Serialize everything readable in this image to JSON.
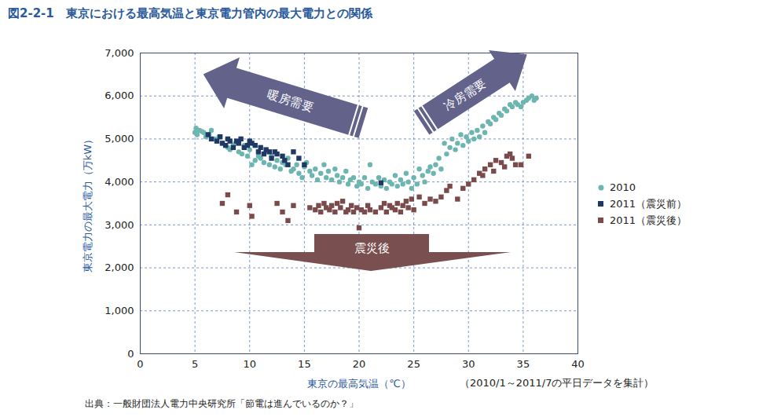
{
  "chart_data": {
    "type": "scatter",
    "title": "図2-2-1　東京における最高気温と東京電力管内の最大電力との関係",
    "x_label": "東京の最高気温（℃）",
    "y_label": "東京電力の最大電力（万kW）",
    "note": "（2010/1～2011/7の平日データを集計）",
    "source": "出典：一般財団法人電力中央研究所「節電は進んでいるのか？」",
    "annotations": [
      "暖房需要",
      "冷房需要",
      "震災後"
    ],
    "xlim": [
      0,
      40
    ],
    "xticks": [
      0,
      5,
      10,
      15,
      20,
      25,
      30,
      35,
      40
    ],
    "ylim": [
      0,
      7000
    ],
    "yticks": [
      0,
      {
        "value": 1000,
        "label": "1,000"
      },
      {
        "value": 2000,
        "label": "2,000"
      },
      {
        "value": 3000,
        "label": "3,000"
      },
      {
        "value": 4000,
        "label": "4,000"
      },
      {
        "value": 5000,
        "label": "5,000"
      },
      {
        "value": 6000,
        "label": "6,000"
      },
      {
        "value": 7000,
        "label": "7,000"
      }
    ],
    "grid": true,
    "legend": "right",
    "series": [
      {
        "name": "2010",
        "color": "#6db5b1",
        "marker": "circle",
        "x": [
          5.0,
          5.1,
          5.2,
          5.4,
          5.6,
          5.8,
          6.0,
          6.3,
          6.5,
          6.8,
          7.0,
          7.2,
          7.5,
          7.8,
          8.0,
          8.2,
          8.5,
          8.7,
          9.0,
          9.3,
          9.5,
          9.8,
          10.0,
          10.2,
          10.5,
          10.8,
          11.0,
          11.3,
          11.5,
          11.8,
          12.0,
          12.3,
          12.5,
          12.8,
          13.0,
          13.3,
          13.5,
          13.8,
          14.0,
          14.3,
          14.5,
          14.8,
          15.0,
          15.2,
          15.5,
          15.7,
          16.0,
          16.2,
          16.5,
          16.8,
          17.0,
          17.2,
          17.5,
          17.8,
          18.0,
          18.2,
          18.5,
          18.8,
          19.0,
          19.2,
          19.5,
          19.8,
          20.0,
          20.2,
          20.5,
          20.8,
          21.0,
          21.2,
          21.5,
          21.8,
          22.0,
          22.3,
          22.5,
          22.8,
          23.0,
          23.3,
          23.5,
          23.8,
          24.0,
          24.3,
          24.5,
          24.8,
          25.0,
          25.3,
          25.5,
          25.8,
          26.0,
          26.3,
          26.5,
          26.8,
          27.0,
          27.3,
          27.5,
          27.8,
          28.0,
          28.3,
          28.5,
          28.8,
          29.0,
          29.3,
          29.5,
          29.8,
          30.0,
          30.3,
          30.5,
          30.8,
          31.0,
          31.3,
          31.5,
          31.8,
          32.0,
          32.3,
          32.5,
          32.8,
          33.0,
          33.3,
          33.5,
          33.8,
          34.0,
          34.3,
          34.5,
          34.8,
          35.0,
          35.3,
          35.5,
          35.8,
          36.0,
          36.2
        ],
        "values": [
          5150,
          5250,
          5100,
          5200,
          5180,
          5150,
          5050,
          5100,
          5200,
          5000,
          4950,
          5050,
          4900,
          4850,
          4800,
          4750,
          4850,
          4900,
          4700,
          4650,
          4850,
          4600,
          4750,
          4400,
          4500,
          4600,
          4550,
          4450,
          4700,
          4400,
          4600,
          4350,
          4500,
          4300,
          4450,
          4400,
          4550,
          4250,
          4300,
          4400,
          4200,
          4100,
          4350,
          4450,
          4250,
          4150,
          4300,
          4050,
          4200,
          4400,
          4100,
          4250,
          4050,
          4300,
          4150,
          4000,
          4100,
          4250,
          3950,
          4050,
          4100,
          3900,
          4000,
          3950,
          4100,
          3850,
          4400,
          4000,
          3950,
          4100,
          3900,
          4050,
          3850,
          4000,
          3950,
          4150,
          3900,
          4050,
          3950,
          4200,
          4000,
          3850,
          4100,
          3950,
          4300,
          4150,
          4000,
          4250,
          4350,
          4200,
          4400,
          4550,
          4300,
          4900,
          4650,
          4800,
          5000,
          4750,
          4900,
          5100,
          4850,
          5050,
          4950,
          5150,
          5000,
          5200,
          5050,
          5300,
          5150,
          5400,
          5350,
          5500,
          5450,
          5600,
          5550,
          5700,
          5650,
          5800,
          5750,
          5850,
          5800,
          5750,
          5850,
          5900,
          5950,
          6000,
          5900,
          5950
        ]
      },
      {
        "name": "2011（震災前）",
        "color": "#1f3864",
        "marker": "square",
        "x": [
          6.2,
          6.5,
          7.0,
          7.3,
          7.5,
          7.8,
          8.0,
          8.2,
          8.5,
          8.8,
          9.0,
          9.2,
          9.5,
          9.8,
          10.0,
          10.2,
          10.5,
          10.8,
          11.0,
          11.3,
          11.5,
          11.8,
          12.0,
          12.3,
          12.5,
          13.0,
          13.2,
          13.5,
          14.0,
          14.5,
          15.0,
          22.0
        ],
        "values": [
          5100,
          5000,
          4950,
          5050,
          4900,
          4850,
          5000,
          4950,
          4800,
          4950,
          4900,
          5000,
          4800,
          4850,
          4950,
          4900,
          4850,
          4700,
          4800,
          4650,
          4750,
          4700,
          4550,
          4700,
          4650,
          4600,
          4500,
          4400,
          4700,
          4550,
          4400,
          3980
        ]
      },
      {
        "name": "2011（震災後）",
        "color": "#7b4a4a",
        "marker": "square",
        "x": [
          7.5,
          8.0,
          8.8,
          10.0,
          10.2,
          12.5,
          13.0,
          13.5,
          14.0,
          15.5,
          16.0,
          16.3,
          16.5,
          16.8,
          17.0,
          17.3,
          17.5,
          17.8,
          18.0,
          18.3,
          18.5,
          18.8,
          19.0,
          19.3,
          19.5,
          19.8,
          20.0,
          20.2,
          20.5,
          20.8,
          21.0,
          21.5,
          22.0,
          22.3,
          22.5,
          22.8,
          23.0,
          23.3,
          23.5,
          23.8,
          24.0,
          24.3,
          24.5,
          24.8,
          25.0,
          25.5,
          26.0,
          26.5,
          27.0,
          27.5,
          28.0,
          28.3,
          29.0,
          29.5,
          30.0,
          30.5,
          31.0,
          31.3,
          31.5,
          32.0,
          32.3,
          32.5,
          33.0,
          33.3,
          33.5,
          33.8,
          34.0,
          34.3,
          34.8,
          35.5
        ],
        "values": [
          3500,
          3700,
          3300,
          3450,
          3200,
          3500,
          3300,
          3100,
          3450,
          3400,
          3350,
          3450,
          3300,
          3500,
          3400,
          3350,
          3450,
          3300,
          3500,
          3400,
          3550,
          3300,
          3350,
          3450,
          3300,
          3400,
          2930,
          3350,
          3300,
          3450,
          3350,
          3300,
          3400,
          3500,
          3300,
          3450,
          3400,
          3350,
          3500,
          3300,
          3450,
          3550,
          3400,
          3600,
          3350,
          3650,
          3500,
          3600,
          3550,
          3650,
          3800,
          3900,
          3600,
          3850,
          3950,
          4050,
          4200,
          4150,
          4300,
          4400,
          4250,
          4500,
          4450,
          4350,
          4600,
          4650,
          4550,
          4400,
          4400,
          4600
        ]
      }
    ]
  }
}
